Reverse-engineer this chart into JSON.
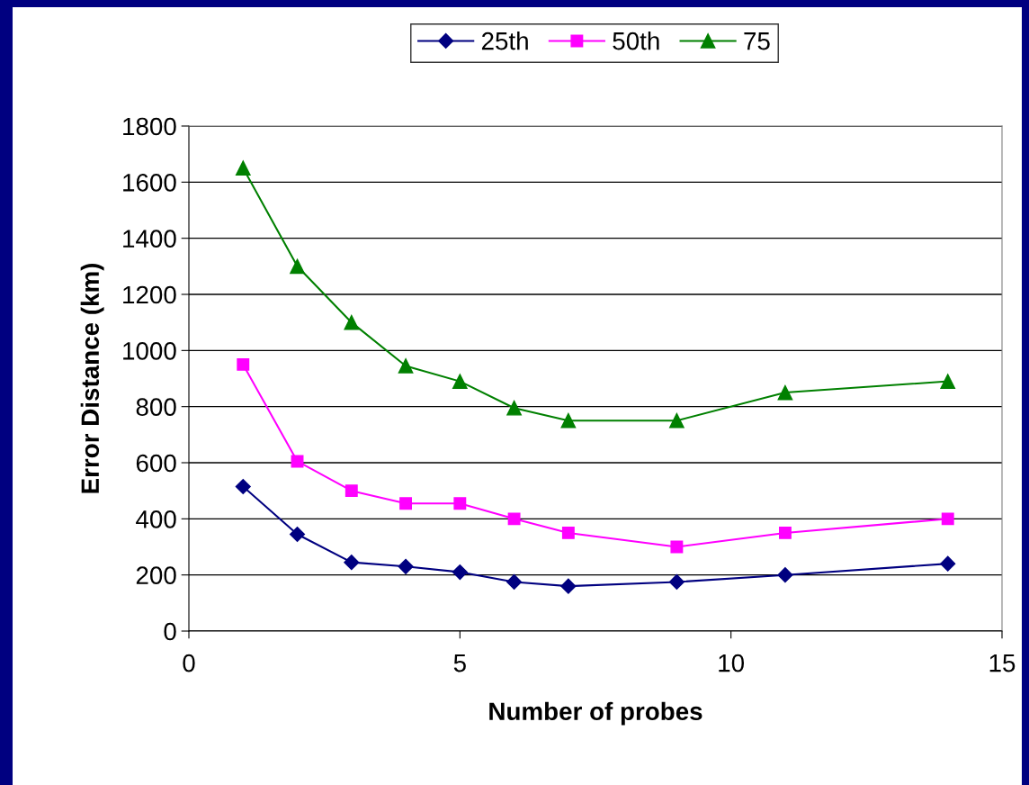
{
  "chart_data": {
    "type": "line",
    "xlabel": "Number of probes",
    "ylabel": "Error Distance (km)",
    "x": [
      1,
      2,
      3,
      4,
      5,
      6,
      7,
      9,
      11,
      14
    ],
    "series": [
      {
        "name": "25th",
        "color": "#000080",
        "marker": "diamond",
        "values": [
          515,
          345,
          245,
          230,
          210,
          175,
          160,
          175,
          200,
          240
        ]
      },
      {
        "name": "50th",
        "color": "#ff00ff",
        "marker": "square",
        "values": [
          950,
          605,
          500,
          455,
          455,
          400,
          350,
          300,
          350,
          400
        ]
      },
      {
        "name": "75",
        "color": "#008000",
        "marker": "triangle",
        "values": [
          1650,
          1300,
          1100,
          945,
          890,
          795,
          750,
          750,
          850,
          890
        ]
      }
    ],
    "xlim": [
      0,
      15
    ],
    "xticks": [
      0,
      5,
      10,
      15
    ],
    "ylim": [
      0,
      1800
    ],
    "yticks": [
      0,
      200,
      400,
      600,
      800,
      1000,
      1200,
      1400,
      1600,
      1800
    ],
    "grid": "y",
    "legend": "top",
    "line_style": "solid"
  }
}
